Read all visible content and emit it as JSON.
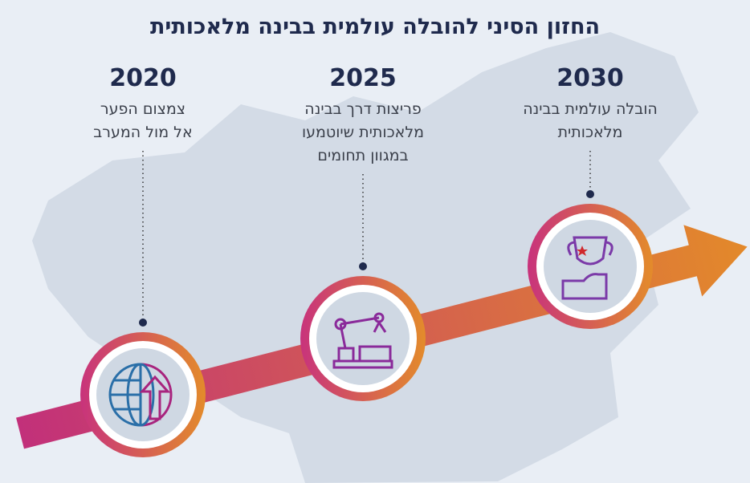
{
  "title": "החזון הסיני להובלה עולמית בבינה מלאכותית",
  "milestones": [
    {
      "year": "2020",
      "description_lines": [
        "צמצום הפער",
        "אל מול המערב"
      ]
    },
    {
      "year": "2025",
      "description_lines": [
        "פריצות דרך בבינה",
        "מלאכותית שיוטמעו",
        "במגוון תחומים"
      ]
    },
    {
      "year": "2030",
      "description_lines": [
        "הובלה עולמית בבינה",
        "מלאכותית"
      ]
    }
  ]
}
